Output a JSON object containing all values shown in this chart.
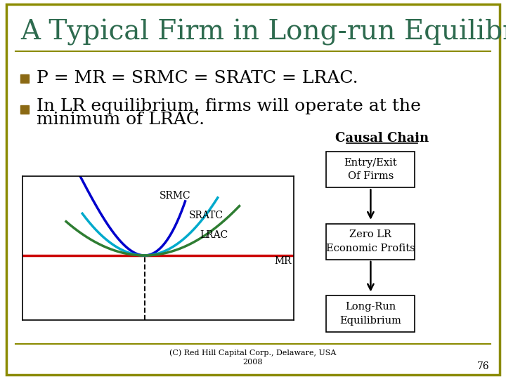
{
  "title": "A Typical Firm in Long-run Equilibrium",
  "title_color": "#2E6B4F",
  "title_fontsize": 28,
  "bullet1": "P = MR = SRMC = SRATC = LRAC.",
  "bullet2_line1": "In LR equilibrium, firms will operate at the",
  "bullet2_line2": "minimum of LRAC.",
  "bullet_fontsize": 18,
  "bullet_color": "#000000",
  "bullet_square_color": "#8B6914",
  "causal_chain_title": "Causal Chain",
  "causal_box1": "Entry/Exit\nOf Firms",
  "causal_box2": "Zero LR\nEconomic Profits",
  "causal_box3": "Long-Run\nEquilibrium",
  "footer": "(C) Red Hill Capital Corp., Delaware, USA\n2008",
  "page_num": "76",
  "bg_color": "#FFFFFF",
  "border_color": "#8B8B00",
  "graph_border_color": "#000000",
  "mr_line_color": "#CC0000",
  "srmc_color": "#0000CC",
  "sratc_color": "#00AACC",
  "lrac_color": "#2E7D32",
  "graph_label_srmc": "SRMC",
  "graph_label_sratc": "SRATC",
  "graph_label_lrac": "LRAC",
  "graph_label_mr": "MR"
}
